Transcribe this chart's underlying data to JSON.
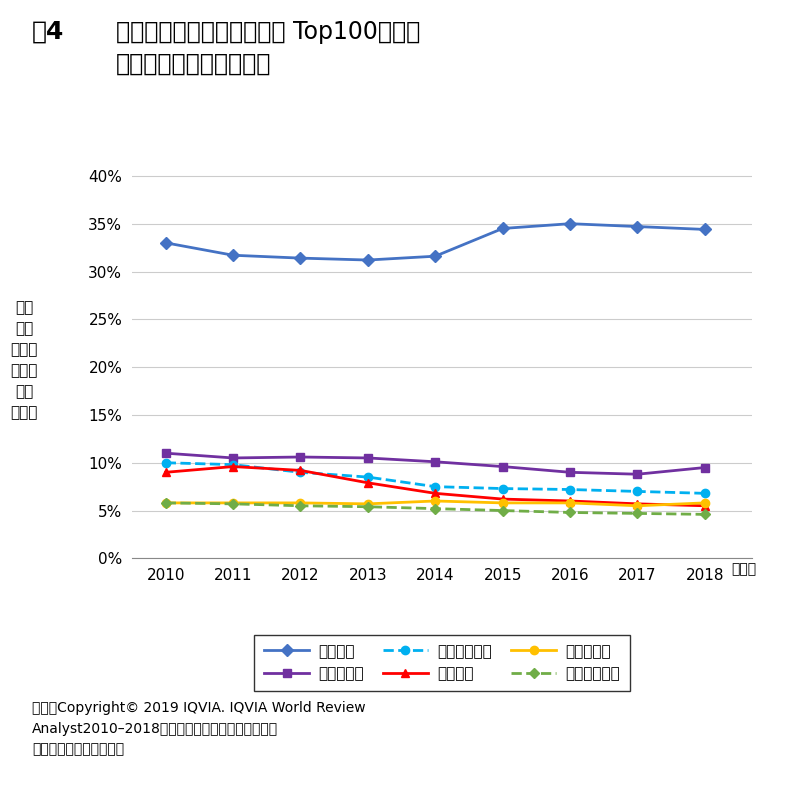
{
  "years": [
    2010,
    2011,
    2012,
    2013,
    2014,
    2015,
    2016,
    2017,
    2018
  ],
  "usa": [
    0.33,
    0.317,
    0.314,
    0.312,
    0.316,
    0.345,
    0.35,
    0.347,
    0.344
  ],
  "switzerland": [
    0.11,
    0.105,
    0.106,
    0.105,
    0.101,
    0.096,
    0.09,
    0.088,
    0.095
  ],
  "uk": [
    0.1,
    0.098,
    0.09,
    0.085,
    0.075,
    0.073,
    0.072,
    0.07,
    0.068
  ],
  "japan": [
    0.09,
    0.096,
    0.092,
    0.079,
    0.068,
    0.062,
    0.06,
    0.057,
    0.055
  ],
  "germany": [
    0.058,
    0.058,
    0.058,
    0.057,
    0.06,
    0.058,
    0.058,
    0.055,
    0.058
  ],
  "france": [
    0.058,
    0.057,
    0.055,
    0.054,
    0.052,
    0.05,
    0.048,
    0.047,
    0.046
  ],
  "title_fig": "围4",
  "title_line1": "世界市場に占める世界売上 Top100企業の",
  "title_line2": "国籍別シェアの年次推移",
  "ylabel_chars": [
    "世界",
    "市場",
    "に占め",
    "る各国",
    "企業",
    "シェア"
  ],
  "xlabel_suffix": "（年）",
  "legend_usa": "米国企業",
  "legend_switzerland": "スイス企業",
  "legend_uk": "イギリス企業",
  "legend_japan": "日本企業",
  "legend_germany": "ドイツ企業",
  "legend_france": "フランス企業",
  "source_line1": "出所：Copyright© 2019 IQVIA. IQVIA World Review",
  "source_line2": "Analyst2010–2018をもとに医薬産業政策研究所に",
  "source_line3": "て作成（無断転載禁止）",
  "color_usa": "#4472C4",
  "color_switzerland": "#7030A0",
  "color_uk": "#00B0F0",
  "color_japan": "#FF0000",
  "color_germany": "#FFC000",
  "color_france": "#70AD47",
  "ylim": [
    0.0,
    0.41
  ],
  "yticks": [
    0.0,
    0.05,
    0.1,
    0.15,
    0.2,
    0.25,
    0.3,
    0.35,
    0.4
  ]
}
